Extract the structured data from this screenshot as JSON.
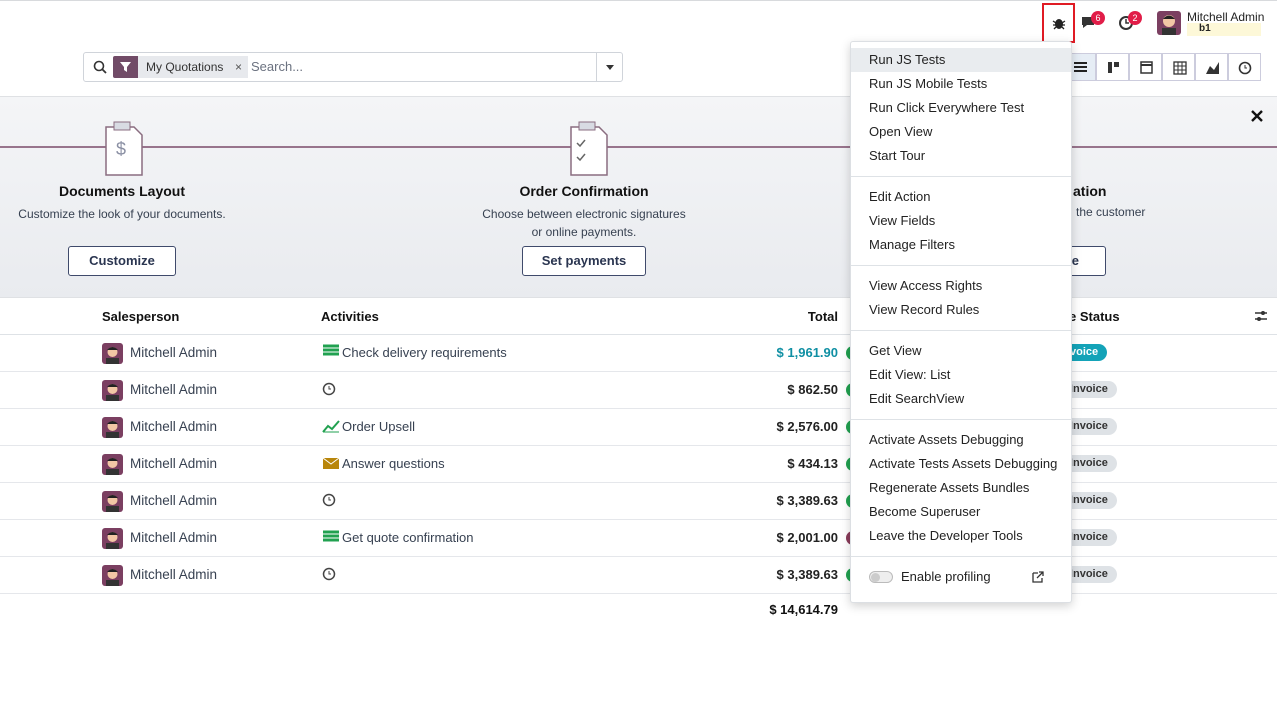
{
  "navbar": {
    "messages_badge": "6",
    "activities_badge": "2",
    "user_name": "Mitchell Admin",
    "database": "b1"
  },
  "search": {
    "facet": "My Quotations",
    "placeholder": "Search..."
  },
  "onboarding": [
    {
      "title": "Documents Layout",
      "description": "Customize the look of your documents.",
      "button": "Customize"
    },
    {
      "title": "Order Confirmation",
      "description": "Choose between electronic signatures or online payments.",
      "button": "Set payments"
    },
    {
      "title": "ation",
      "description": "the customer",
      "button": "le"
    }
  ],
  "table": {
    "headers": {
      "salesperson": "Salesperson",
      "activities": "Activities",
      "total": "Total",
      "status": "e Status"
    },
    "rows": [
      {
        "salesperson": "Mitchell Admin",
        "activity": "Check delivery requirements",
        "total": "$ 1,961.90",
        "status": "voice"
      },
      {
        "salesperson": "Mitchell Admin",
        "activity": "",
        "total": "$ 862.50",
        "status": "ng to Invoice"
      },
      {
        "salesperson": "Mitchell Admin",
        "activity": "Order Upsell",
        "total": "$ 2,576.00",
        "status": "ng to Invoice"
      },
      {
        "salesperson": "Mitchell Admin",
        "activity": "Answer questions",
        "total": "$ 434.13",
        "status": "ng to Invoice"
      },
      {
        "salesperson": "Mitchell Admin",
        "activity": "",
        "total": "$ 3,389.63",
        "status": "ng to Invoice"
      },
      {
        "salesperson": "Mitchell Admin",
        "activity": "Get quote confirmation",
        "total": "$ 2,001.00",
        "status": "ng to Invoice"
      },
      {
        "salesperson": "Mitchell Admin",
        "activity": "",
        "total": "$ 3,389.63",
        "status": "ng to Invoice"
      }
    ],
    "footer_total": "$ 14,614.79"
  },
  "debug_menu": {
    "groups": [
      [
        "Run JS Tests",
        "Run JS Mobile Tests",
        "Run Click Everywhere Test",
        "Open View",
        "Start Tour"
      ],
      [
        "Edit Action",
        "View Fields",
        "Manage Filters"
      ],
      [
        "View Access Rights",
        "View Record Rules"
      ],
      [
        "Get View",
        "Edit View: List",
        "Edit SearchView"
      ],
      [
        "Activate Assets Debugging",
        "Activate Tests Assets Debugging",
        "Regenerate Assets Bundles",
        "Become Superuser",
        "Leave the Developer Tools"
      ]
    ],
    "profiling": "Enable profiling"
  }
}
